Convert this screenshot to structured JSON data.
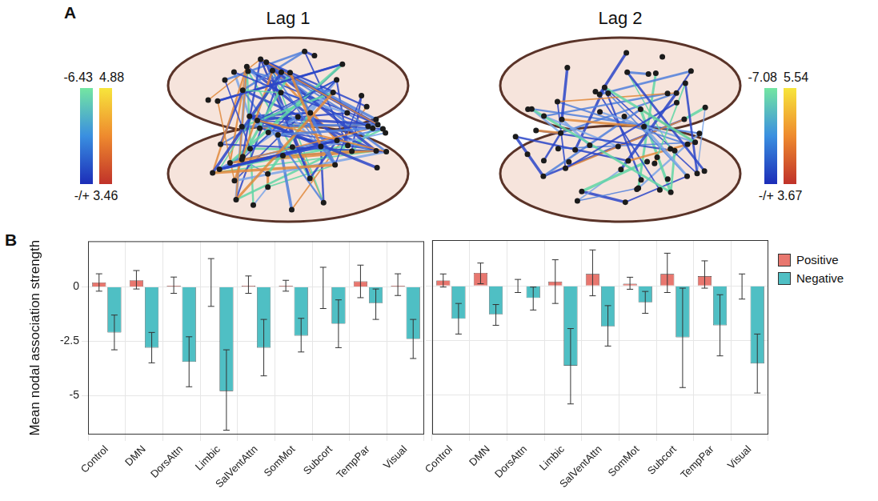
{
  "panel_labels": [
    "A",
    "B"
  ],
  "panel_a": [
    {
      "title": "Lag 1",
      "colorbar": {
        "min": -6.43,
        "max": 4.88,
        "threshold": {
          "value": 3.46,
          "label": "-/+ 3.46"
        }
      }
    },
    {
      "title": "Lag 2",
      "colorbar": {
        "min": -7.08,
        "max": 5.54,
        "threshold": {
          "value": 3.67,
          "label": "-/+ 3.67"
        }
      }
    }
  ],
  "chart_data": [
    {
      "type": "bar",
      "ylabel": "Mean nodal association strength",
      "categories": [
        "Control",
        "DMN",
        "DorsAttn",
        "Limbic",
        "SalVentAttn",
        "SomMot",
        "Subcort",
        "TempPar",
        "Visual"
      ],
      "ylim": [
        -6.8,
        2.1
      ],
      "yticks": [
        -5,
        -2.5,
        0
      ],
      "grid": true,
      "series": [
        {
          "name": "Positive",
          "color": "#e8776f",
          "values": [
            0.2,
            0.3,
            0.05,
            0,
            0.05,
            0.05,
            0,
            0.25,
            0.05
          ],
          "error_low": [
            -0.2,
            -0.1,
            -0.3,
            -0.9,
            -0.3,
            -0.2,
            -1.0,
            -0.5,
            -0.4
          ],
          "error_high": [
            0.6,
            0.75,
            0.45,
            1.3,
            0.5,
            0.3,
            0.9,
            1.0,
            0.6
          ]
        },
        {
          "name": "Negative",
          "color": "#4fbfc4",
          "values": [
            -2.1,
            -2.8,
            -3.45,
            -4.8,
            -2.8,
            -2.25,
            -1.7,
            -0.75,
            -2.4
          ],
          "error_low": [
            -2.9,
            -3.5,
            -4.6,
            -6.6,
            -4.1,
            -3.0,
            -2.8,
            -1.5,
            -3.3
          ],
          "error_high": [
            -1.3,
            -2.1,
            -2.3,
            -2.9,
            -1.5,
            -1.45,
            -0.6,
            -0.1,
            -1.5
          ]
        }
      ]
    },
    {
      "type": "bar",
      "categories": [
        "Control",
        "DMN",
        "DorsAttn",
        "Limbic",
        "SalVentAttn",
        "SomMot",
        "Subcort",
        "TempPar",
        "Visual"
      ],
      "ylim": [
        -6.8,
        2.1
      ],
      "yticks": [
        -5,
        -2.5,
        0
      ],
      "grid": true,
      "tick_labels": "x",
      "legend": "right",
      "series": [
        {
          "name": "Positive",
          "color": "#e8776f",
          "values": [
            0.25,
            0.6,
            0,
            0.2,
            0.55,
            0.1,
            0.55,
            0.45,
            0
          ],
          "error_low": [
            -0.05,
            0.1,
            -0.3,
            -0.8,
            -0.45,
            -0.15,
            -0.3,
            -0.1,
            -0.6
          ],
          "error_high": [
            0.55,
            1.05,
            0.3,
            1.2,
            1.65,
            0.4,
            1.5,
            1.15,
            0.55
          ]
        },
        {
          "name": "Negative",
          "color": "#4fbfc4",
          "values": [
            -1.5,
            -1.3,
            -0.55,
            -3.65,
            -1.85,
            -0.75,
            -2.35,
            -1.8,
            -3.55
          ],
          "error_low": [
            -2.2,
            -1.8,
            -1.1,
            -5.4,
            -2.75,
            -1.25,
            -4.65,
            -3.2,
            -4.9
          ],
          "error_high": [
            -0.8,
            -0.85,
            -0.05,
            -1.95,
            -0.9,
            -0.25,
            -0.1,
            -0.4,
            -2.2
          ]
        }
      ]
    }
  ]
}
